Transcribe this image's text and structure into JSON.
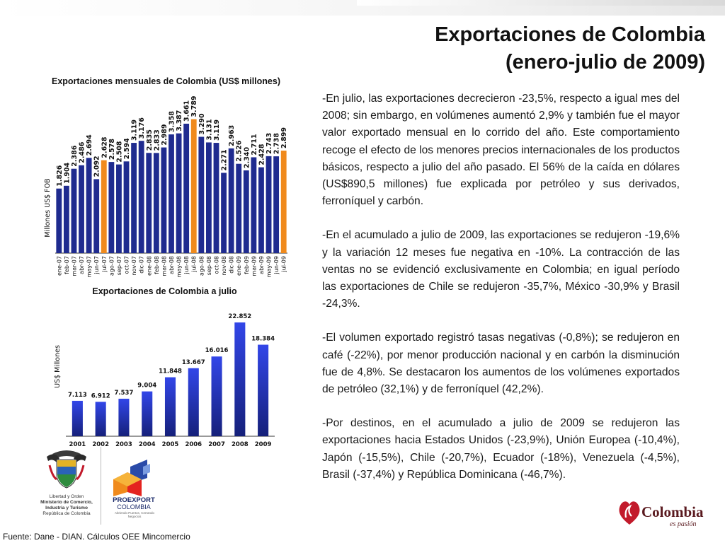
{
  "slide": {
    "title_line1": "Exportaciones de Colombia",
    "title_line2": "(enero-julio de 2009)"
  },
  "paragraphs": [
    "-En julio, las exportaciones decrecieron -23,5%, respecto a igual mes del 2008; sin embargo, en volúmenes aumentó 2,9% y también fue el mayor valor exportado mensual en lo corrido del año. Este comportamiento recoge el efecto de los menores precios internacionales de los productos básicos, respecto a julio del año pasado. El 56% de la caída en dólares (US$890,5 millones) fue explicada por petróleo y sus derivados,  ferroníquel y carbón.",
    "-En el acumulado a julio de 2009, las exportaciones se redujeron -19,6% y la variación 12 meses fue negativa en -10%. La contracción de las ventas no se evidenció exclusivamente en Colombia; en igual período las exportaciones de Chile se redujeron -35,7%, México -30,9% y Brasil -24,3%.",
    "-El volumen exportado registró tasas negativas (-0,8%); se redujeron en café   (-22%), por menor producción nacional y en carbón la disminución fue de 4,8%. Se destacaron los aumentos de los volúmenes exportados de petróleo (32,1%) y de ferroníquel (42,2%).",
    "-Por destinos, en el acumulado a julio de 2009 se redujeron las exportaciones hacia Estados Unidos (-23,9%), Unión Europea (-10,4%), Japón (-15,5%), Chile (-20,7%), Ecuador (-18%), Venezuela (-4,5%), Brasil (-37,4%) y República Dominicana (-46,7%)."
  ],
  "chart_data": [
    {
      "type": "bar",
      "title": "Exportaciones mensuales de Colombia (US$ millones)",
      "ylabel": "Millones US$ FOB",
      "xlabel": "",
      "categories": [
        "ene-07",
        "feb-07",
        "mar-07",
        "abr-07",
        "may-07",
        "jun-07",
        "jul-07",
        "ago-07",
        "sep-07",
        "oct-07",
        "nov-07",
        "dic-07",
        "ene-08",
        "feb-08",
        "mar-08",
        "abr-08",
        "may-08",
        "jun-08",
        "jul-08",
        "ago-08",
        "sep-08",
        "oct-08",
        "nov-08",
        "dic-08",
        "ene-09",
        "feb-09",
        "mar-09",
        "abr-09",
        "may-09",
        "jun-09",
        "jul-09"
      ],
      "values": [
        1826,
        1904,
        2386,
        2486,
        2694,
        2092,
        2628,
        2578,
        2508,
        2594,
        3119,
        3176,
        2835,
        2833,
        2989,
        3358,
        3387,
        3661,
        3789,
        3290,
        3131,
        3119,
        2271,
        2963,
        2526,
        2340,
        2711,
        2428,
        2743,
        2738,
        2899
      ],
      "value_labels": [
        "1.826",
        "1.904",
        "2.386",
        "2.486",
        "2.694",
        "2.092",
        "2.628",
        "2.578",
        "2.508",
        "2.594",
        "3.119",
        "3.176",
        "2.835",
        "2.833",
        "2.989",
        "3.358",
        "3.387",
        "3.661",
        "3.789",
        "3.290",
        "3.131",
        "3.119",
        "2.271",
        "2.963",
        "2.526",
        "2.340",
        "2.711",
        "2.428",
        "2.743",
        "2.738",
        "2.899"
      ],
      "highlight_categories": [
        "jul-07",
        "jul-08",
        "jul-09"
      ],
      "highlight_color": "#f08a1c",
      "bar_color": "#1f2b8f",
      "ylim": [
        0,
        4000
      ],
      "grid": false,
      "legend": "none"
    },
    {
      "type": "bar",
      "title": "Exportaciones de Colombia a julio",
      "ylabel": "US$ Millones",
      "xlabel": "",
      "categories": [
        "2001",
        "2002",
        "2003",
        "2004",
        "2005",
        "2006",
        "2007",
        "2008",
        "2009"
      ],
      "values": [
        7113,
        6912,
        7537,
        9004,
        11848,
        13667,
        16016,
        22852,
        18384
      ],
      "value_labels": [
        "7.113",
        "6.912",
        "7.537",
        "9.004",
        "11.848",
        "13.667",
        "16.016",
        "22.852",
        "18.384"
      ],
      "bar_color": "#1f2bd0",
      "ylim": [
        0,
        24000
      ],
      "grid": false,
      "legend": "none"
    }
  ],
  "logos": {
    "mincomercio_lines": [
      "Libertad y Orden",
      "Ministerio de Comercio,",
      "Industria y Turismo",
      "República de Colombia"
    ],
    "proexport_name": "PROEXPORT",
    "proexport_country": "COLOMBIA",
    "proexport_tagline": "Abriendo Puertos, Cerrando Negocios",
    "colombia_word": "Colombia",
    "colombia_slogan": "es pasión"
  },
  "footer": {
    "source": "Fuente: Dane - DIAN. Cálculos OEE Mincomercio"
  },
  "colors": {
    "bar_dark_blue": "#1f2b8f",
    "bar_bright_blue": "#1f2bd0",
    "bar_orange": "#f08a1c",
    "colombia_red": "#c21a2b"
  }
}
